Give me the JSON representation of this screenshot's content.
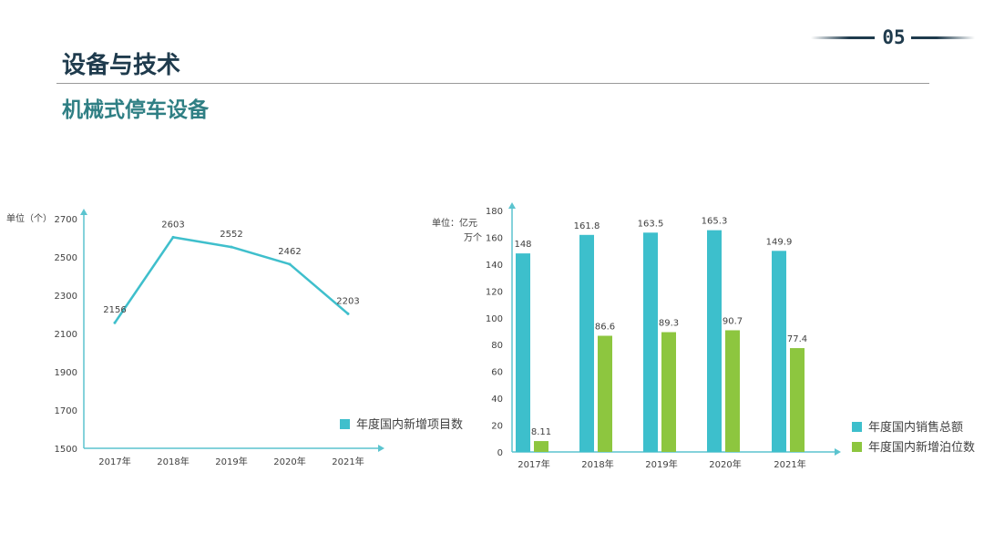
{
  "page": {
    "number": "05",
    "title": "设备与技术",
    "subtitle": "机械式停车设备"
  },
  "colors": {
    "line": "#3fbfcc",
    "bar_sales": "#3dbfcc",
    "bar_parking": "#8dc63f",
    "axis": "#5bc4cf",
    "text": "#404040"
  },
  "chart_data": [
    {
      "type": "line",
      "unit_label": "单位（个）",
      "categories": [
        "2017年",
        "2018年",
        "2019年",
        "2020年",
        "2021年"
      ],
      "series": [
        {
          "name": "年度国内新增项目数",
          "values": [
            2156,
            2603,
            2552,
            2462,
            2203
          ]
        }
      ],
      "yticks": [
        1500,
        1700,
        1900,
        2100,
        2300,
        2500,
        2700
      ],
      "ylim": [
        1500,
        2700
      ],
      "legend": "bottom-right"
    },
    {
      "type": "bar",
      "unit_label_line1": "单位：亿元",
      "unit_label_line2": "万个",
      "categories": [
        "2017年",
        "2018年",
        "2019年",
        "2020年",
        "2021年"
      ],
      "series": [
        {
          "name": "年度国内销售总额",
          "values": [
            148,
            161.8,
            163.5,
            165.3,
            149.9
          ]
        },
        {
          "name": "年度国内新增泊位数",
          "values": [
            8.11,
            86.6,
            89.3,
            90.7,
            77.4
          ]
        }
      ],
      "yticks": [
        0,
        20,
        40,
        60,
        80,
        100,
        120,
        140,
        160,
        180
      ],
      "ylim": [
        0,
        180
      ],
      "legend": "bottom-right"
    }
  ]
}
